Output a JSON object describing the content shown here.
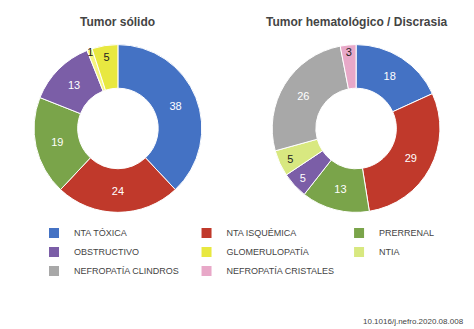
{
  "chart_data": [
    {
      "type": "pie",
      "title": "Tumor sólido",
      "categories": [
        "NTA TÓXICA",
        "NTA ISQUÉMICA",
        "PRERRENAL",
        "OBSTRUCTIVO",
        null,
        "GLOMERULOPATÍA"
      ],
      "values": [
        38,
        24,
        19,
        13,
        1,
        5
      ],
      "colors": [
        "#4472c4",
        "#c0392b",
        "#7aa44a",
        "#7b5ea7",
        "#f5f580",
        "#e8e840"
      ],
      "data_labels": true
    },
    {
      "type": "pie",
      "title": "Tumor hematológico / Discrasia",
      "categories": [
        "NTA TÓXICA",
        "NTA ISQUÉMICA",
        "PRERRENAL",
        "OBSTRUCTIVO",
        "NTIA",
        "NEFROPATÍA CLINDROS",
        "NEFROPATÍA CRISTALES"
      ],
      "values": [
        18,
        29,
        13,
        5,
        5,
        26,
        3
      ],
      "colors": [
        "#4472c4",
        "#c0392b",
        "#7aa44a",
        "#7b5ea7",
        "#d8e880",
        "#a8a8a8",
        "#e8a8c8"
      ],
      "data_labels": true,
      "annotations": [
        "10.1016/j.nefro.2020.08.008"
      ]
    }
  ]
}
